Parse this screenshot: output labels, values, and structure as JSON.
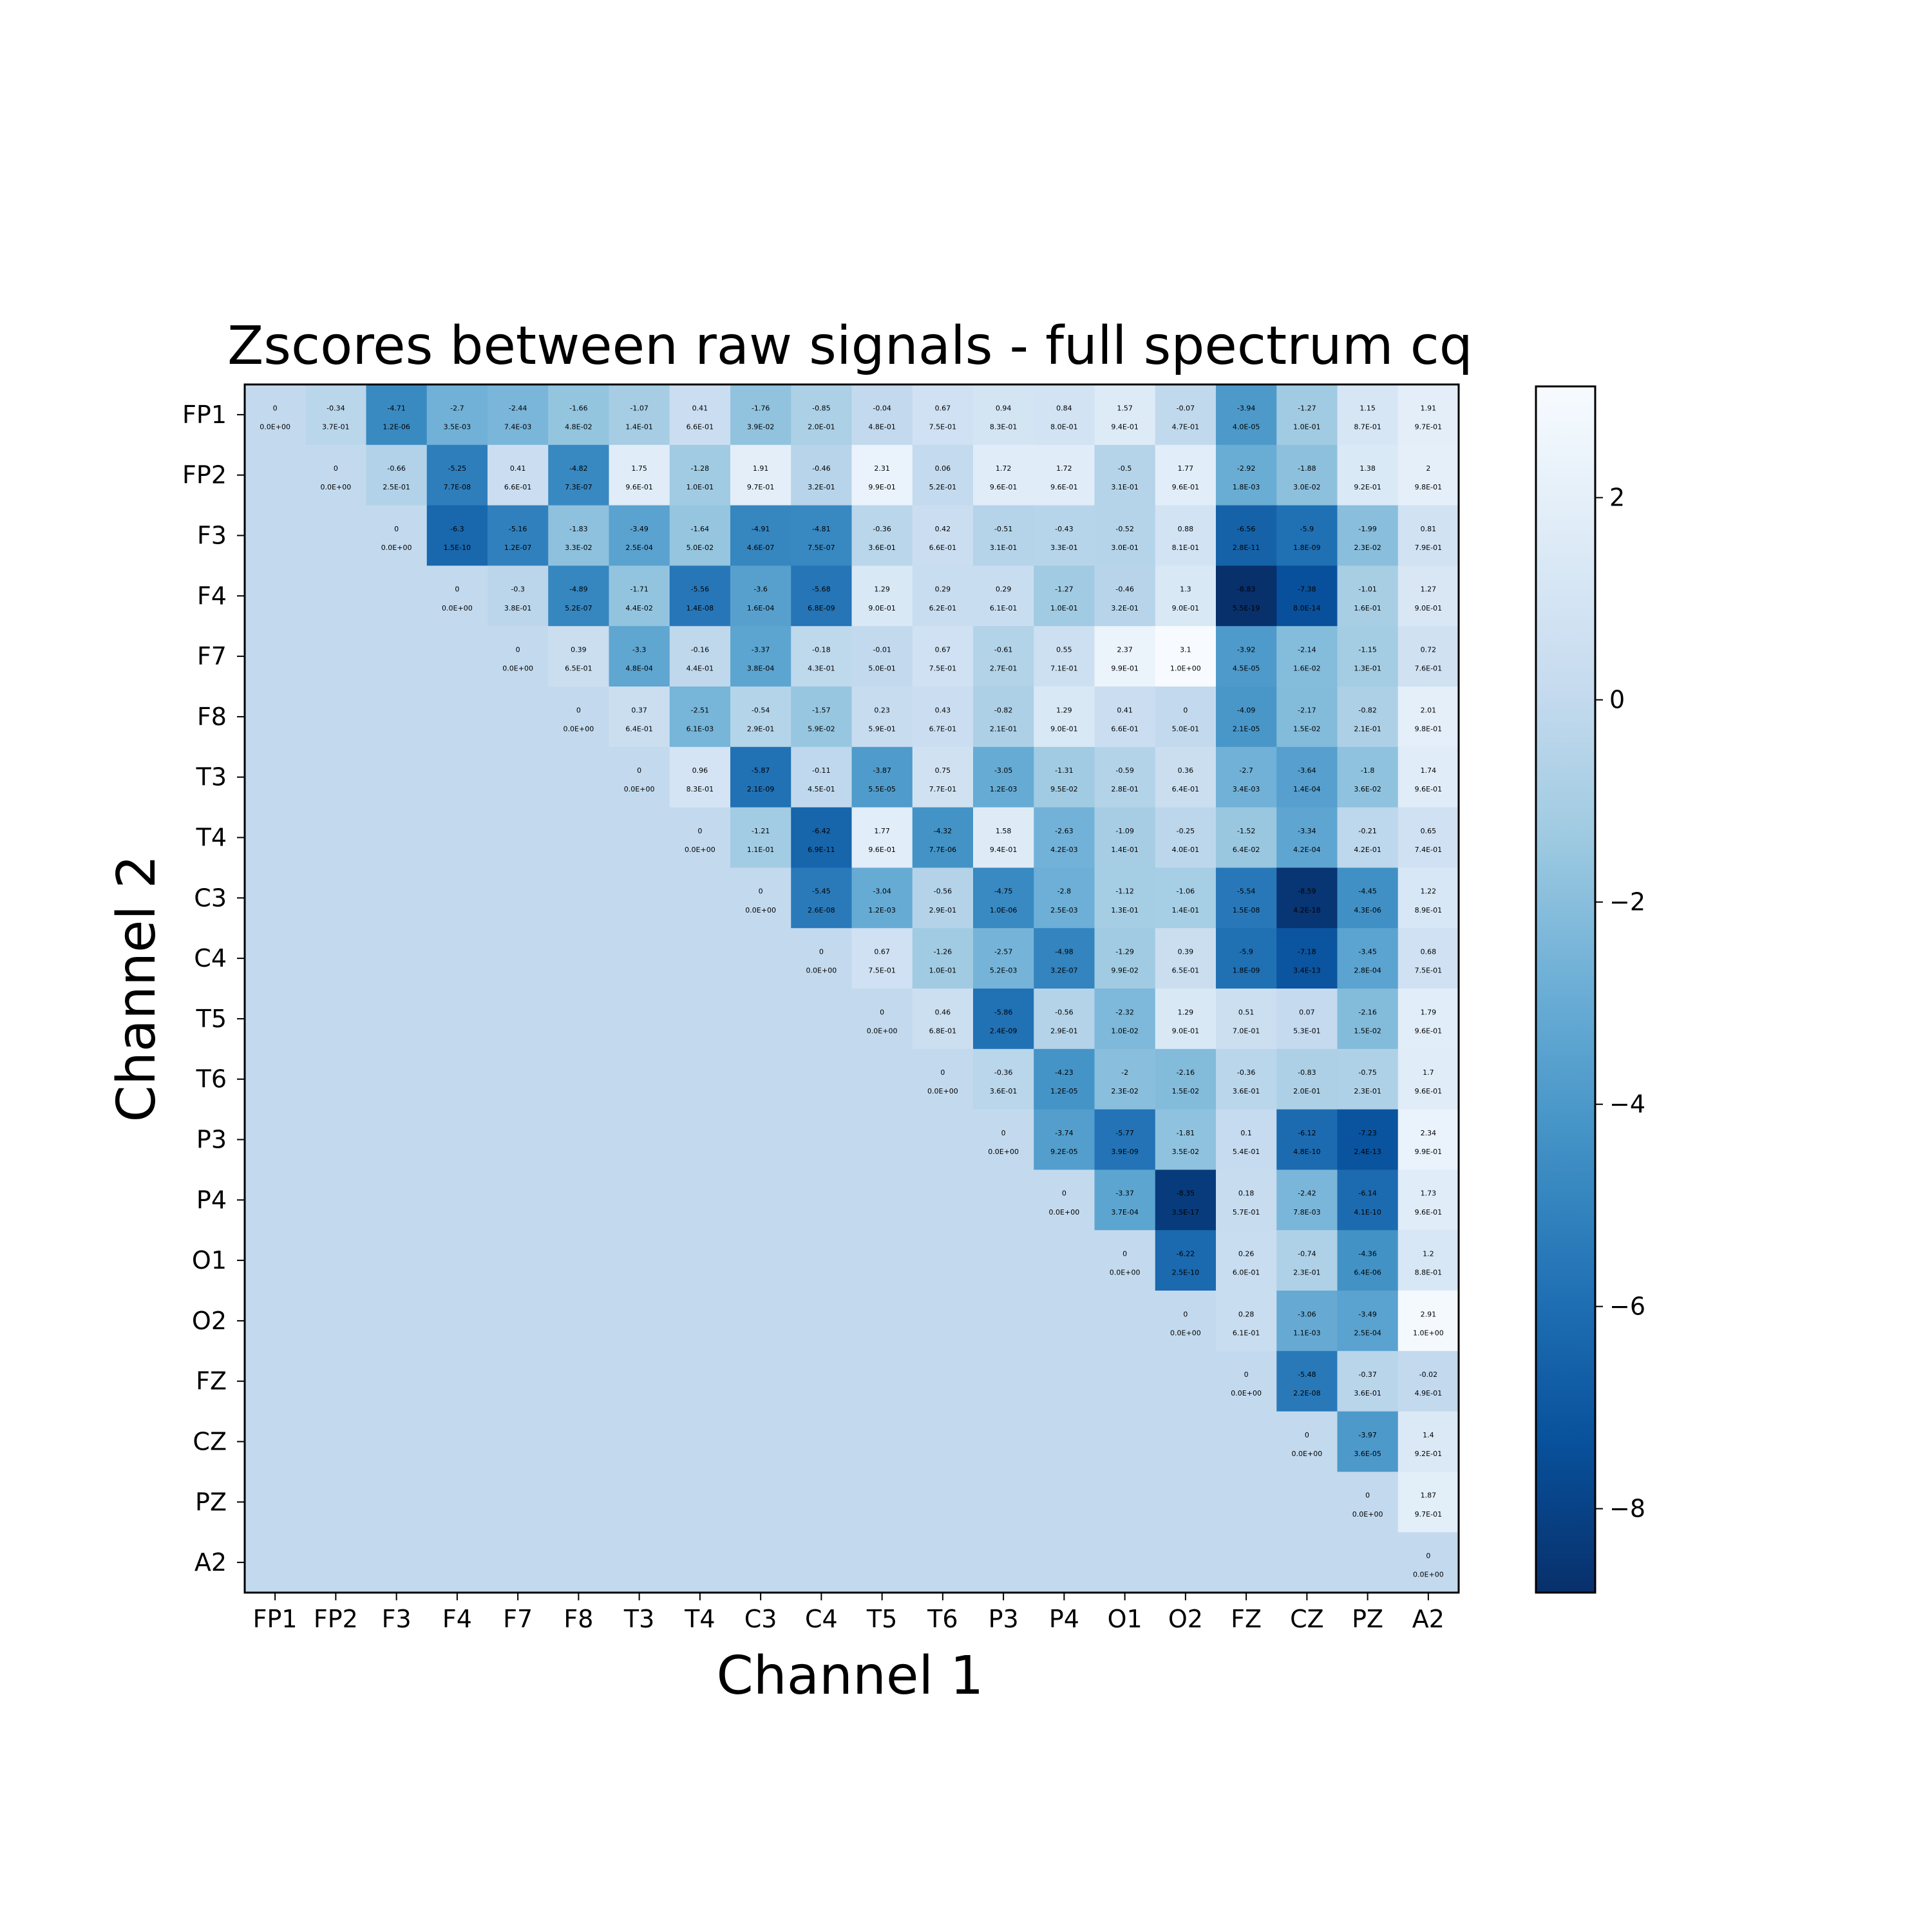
{
  "chart_data": {
    "type": "heatmap",
    "title": "Zscores between raw signals - full spectrum cq",
    "xlabel": "Channel 1",
    "ylabel": "Channel 2",
    "channels": [
      "FP1",
      "FP2",
      "F3",
      "F4",
      "F7",
      "F8",
      "T3",
      "T4",
      "C3",
      "C4",
      "T5",
      "T6",
      "P3",
      "P4",
      "O1",
      "O2",
      "FZ",
      "CZ",
      "PZ",
      "A2"
    ],
    "colormap": "Blues_r",
    "vmin": -8.83,
    "vmax": 3.1,
    "fill_value": 0.0,
    "colorbar_ticks": [
      2,
      0,
      -2,
      -4,
      -6,
      -8
    ],
    "zscores": [
      [
        0.0,
        -0.34,
        -4.71,
        -2.7,
        -2.44,
        -1.66,
        -1.07,
        0.41,
        -1.76,
        -0.85,
        -0.04,
        0.67,
        0.94,
        0.84,
        1.57,
        -0.07,
        -3.94,
        -1.27,
        1.15,
        1.91
      ],
      [
        0.0,
        -0.66,
        -5.25,
        0.41,
        -4.82,
        1.75,
        -1.28,
        1.91,
        -0.46,
        2.31,
        0.06,
        1.72,
        1.72,
        -0.5,
        1.77,
        -2.92,
        -1.88,
        1.38,
        2.0
      ],
      [
        0.0,
        -6.3,
        -5.16,
        -1.83,
        -3.49,
        -1.64,
        -4.91,
        -4.81,
        -0.36,
        0.42,
        -0.51,
        -0.43,
        -0.52,
        0.88,
        -6.56,
        -5.9,
        -1.99,
        0.81
      ],
      [
        0.0,
        -0.3,
        -4.89,
        -1.71,
        -5.56,
        -3.6,
        -5.68,
        1.29,
        0.29,
        0.29,
        -1.27,
        -0.46,
        1.3,
        -8.83,
        -7.38,
        -1.01,
        1.27
      ],
      [
        0.0,
        0.39,
        -3.3,
        -0.16,
        -3.37,
        -0.18,
        -0.01,
        0.67,
        -0.61,
        0.55,
        2.37,
        3.1,
        -3.92,
        -2.14,
        -1.15,
        0.72
      ],
      [
        0.0,
        0.37,
        -2.51,
        -0.54,
        -1.57,
        0.23,
        0.43,
        -0.82,
        1.29,
        0.41,
        0.0,
        -4.09,
        -2.17,
        -0.82,
        2.01
      ],
      [
        0.0,
        0.96,
        -5.87,
        -0.11,
        -3.87,
        0.75,
        -3.05,
        -1.31,
        -0.59,
        0.36,
        -2.7,
        -3.64,
        -1.8,
        1.74
      ],
      [
        0.0,
        -1.21,
        -6.42,
        1.77,
        -4.32,
        1.58,
        -2.63,
        -1.09,
        -0.25,
        -1.52,
        -3.34,
        -0.21,
        0.65
      ],
      [
        0.0,
        -5.45,
        -3.04,
        -0.56,
        -4.75,
        -2.8,
        -1.12,
        -1.06,
        -5.54,
        -8.59,
        -4.45,
        1.22
      ],
      [
        0.0,
        0.67,
        -1.26,
        -2.57,
        -4.98,
        -1.29,
        0.39,
        -5.9,
        -7.18,
        -3.45,
        0.68
      ],
      [
        0.0,
        0.46,
        -5.86,
        -0.56,
        -2.32,
        1.29,
        0.51,
        0.07,
        -2.16,
        1.79
      ],
      [
        0.0,
        -0.36,
        -4.23,
        -2.0,
        -2.16,
        -0.36,
        -0.83,
        -0.75,
        1.7
      ],
      [
        0.0,
        -3.74,
        -5.77,
        -1.81,
        0.1,
        -6.12,
        -7.23,
        2.34
      ],
      [
        0.0,
        -3.37,
        -8.35,
        0.18,
        -2.42,
        -6.14,
        1.73
      ],
      [
        0.0,
        -6.22,
        0.26,
        -0.74,
        -4.36,
        1.2
      ],
      [
        0.0,
        0.28,
        -3.06,
        -3.49,
        2.91
      ],
      [
        0.0,
        -5.48,
        -0.37,
        -0.02
      ],
      [
        0.0,
        -3.97,
        1.4
      ],
      [
        0.0,
        1.87
      ],
      [
        0.0
      ]
    ],
    "pvalues": [
      [
        "0.0E+00",
        "3.7E-01",
        "1.2E-06",
        "3.5E-03",
        "7.4E-03",
        "4.8E-02",
        "1.4E-01",
        "6.6E-01",
        "3.9E-02",
        "2.0E-01",
        "4.8E-01",
        "7.5E-01",
        "8.3E-01",
        "8.0E-01",
        "9.4E-01",
        "4.7E-01",
        "4.0E-05",
        "1.0E-01",
        "8.7E-01",
        "9.7E-01"
      ],
      [
        "0.0E+00",
        "2.5E-01",
        "7.7E-08",
        "6.6E-01",
        "7.3E-07",
        "9.6E-01",
        "1.0E-01",
        "9.7E-01",
        "3.2E-01",
        "9.9E-01",
        "5.2E-01",
        "9.6E-01",
        "9.6E-01",
        "3.1E-01",
        "9.6E-01",
        "1.8E-03",
        "3.0E-02",
        "9.2E-01",
        "9.8E-01"
      ],
      [
        "0.0E+00",
        "1.5E-10",
        "1.2E-07",
        "3.3E-02",
        "2.5E-04",
        "5.0E-02",
        "4.6E-07",
        "7.5E-07",
        "3.6E-01",
        "6.6E-01",
        "3.1E-01",
        "3.3E-01",
        "3.0E-01",
        "8.1E-01",
        "2.8E-11",
        "1.8E-09",
        "2.3E-02",
        "7.9E-01"
      ],
      [
        "0.0E+00",
        "3.8E-01",
        "5.2E-07",
        "4.4E-02",
        "1.4E-08",
        "1.6E-04",
        "6.8E-09",
        "9.0E-01",
        "6.2E-01",
        "6.1E-01",
        "1.0E-01",
        "3.2E-01",
        "9.0E-01",
        "5.5E-19",
        "8.0E-14",
        "1.6E-01",
        "9.0E-01"
      ],
      [
        "0.0E+00",
        "6.5E-01",
        "4.8E-04",
        "4.4E-01",
        "3.8E-04",
        "4.3E-01",
        "5.0E-01",
        "7.5E-01",
        "2.7E-01",
        "7.1E-01",
        "9.9E-01",
        "1.0E+00",
        "4.5E-05",
        "1.6E-02",
        "1.3E-01",
        "7.6E-01"
      ],
      [
        "0.0E+00",
        "6.4E-01",
        "6.1E-03",
        "2.9E-01",
        "5.9E-02",
        "5.9E-01",
        "6.7E-01",
        "2.1E-01",
        "9.0E-01",
        "6.6E-01",
        "5.0E-01",
        "2.1E-05",
        "1.5E-02",
        "2.1E-01",
        "9.8E-01"
      ],
      [
        "0.0E+00",
        "8.3E-01",
        "2.1E-09",
        "4.5E-01",
        "5.5E-05",
        "7.7E-01",
        "1.2E-03",
        "9.5E-02",
        "2.8E-01",
        "6.4E-01",
        "3.4E-03",
        "1.4E-04",
        "3.6E-02",
        "9.6E-01"
      ],
      [
        "0.0E+00",
        "1.1E-01",
        "6.9E-11",
        "9.6E-01",
        "7.7E-06",
        "9.4E-01",
        "4.2E-03",
        "1.4E-01",
        "4.0E-01",
        "6.4E-02",
        "4.2E-04",
        "4.2E-01",
        "7.4E-01"
      ],
      [
        "0.0E+00",
        "2.6E-08",
        "1.2E-03",
        "2.9E-01",
        "1.0E-06",
        "2.5E-03",
        "1.3E-01",
        "1.4E-01",
        "1.5E-08",
        "4.2E-18",
        "4.3E-06",
        "8.9E-01"
      ],
      [
        "0.0E+00",
        "7.5E-01",
        "1.0E-01",
        "5.2E-03",
        "3.2E-07",
        "9.9E-02",
        "6.5E-01",
        "1.8E-09",
        "3.4E-13",
        "2.8E-04",
        "7.5E-01"
      ],
      [
        "0.0E+00",
        "6.8E-01",
        "2.4E-09",
        "2.9E-01",
        "1.0E-02",
        "9.0E-01",
        "7.0E-01",
        "5.3E-01",
        "1.5E-02",
        "9.6E-01"
      ],
      [
        "0.0E+00",
        "3.6E-01",
        "1.2E-05",
        "2.3E-02",
        "1.5E-02",
        "3.6E-01",
        "2.0E-01",
        "2.3E-01",
        "9.6E-01"
      ],
      [
        "0.0E+00",
        "9.2E-05",
        "3.9E-09",
        "3.5E-02",
        "5.4E-01",
        "4.8E-10",
        "2.4E-13",
        "9.9E-01"
      ],
      [
        "0.0E+00",
        "3.7E-04",
        "3.5E-17",
        "5.7E-01",
        "7.8E-03",
        "4.1E-10",
        "9.6E-01"
      ],
      [
        "0.0E+00",
        "2.5E-10",
        "6.0E-01",
        "2.3E-01",
        "6.4E-06",
        "8.8E-01"
      ],
      [
        "0.0E+00",
        "6.1E-01",
        "1.1E-03",
        "2.5E-04",
        "1.0E+00"
      ],
      [
        "0.0E+00",
        "2.2E-08",
        "3.6E-01",
        "4.9E-01"
      ],
      [
        "0.0E+00",
        "3.6E-05",
        "9.2E-01"
      ],
      [
        "0.0E+00",
        "9.7E-01"
      ],
      [
        "0.0E+00"
      ]
    ]
  }
}
